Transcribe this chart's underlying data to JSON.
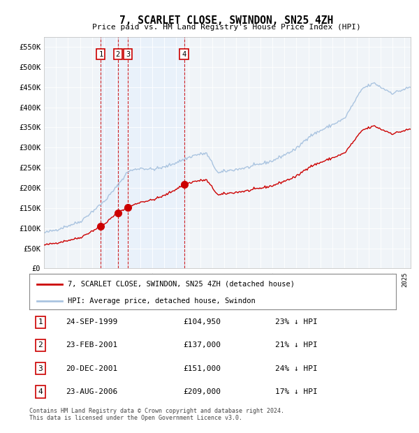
{
  "title": "7, SCARLET CLOSE, SWINDON, SN25 4ZH",
  "subtitle": "Price paid vs. HM Land Registry's House Price Index (HPI)",
  "ylabel_ticks": [
    "£0",
    "£50K",
    "£100K",
    "£150K",
    "£200K",
    "£250K",
    "£300K",
    "£350K",
    "£400K",
    "£450K",
    "£500K",
    "£550K"
  ],
  "ytick_values": [
    0,
    50000,
    100000,
    150000,
    200000,
    250000,
    300000,
    350000,
    400000,
    450000,
    500000,
    550000
  ],
  "ylim": [
    0,
    575000
  ],
  "xlim_start": 1995.0,
  "xlim_end": 2025.5,
  "hpi_color": "#aac4e0",
  "price_color": "#cc0000",
  "sale_marker_color": "#cc0000",
  "dashed_line_color": "#cc0000",
  "shade_color": "#ddeeff",
  "transactions": [
    {
      "num": 1,
      "date_label": "24-SEP-1999",
      "year_x": 1999.73,
      "price": 104950,
      "price_label": "£104,950",
      "discount": "23% ↓ HPI"
    },
    {
      "num": 2,
      "date_label": "23-FEB-2001",
      "year_x": 2001.15,
      "price": 137000,
      "price_label": "£137,000",
      "discount": "21% ↓ HPI"
    },
    {
      "num": 3,
      "date_label": "20-DEC-2001",
      "year_x": 2001.97,
      "price": 151000,
      "price_label": "£151,000",
      "discount": "24% ↓ HPI"
    },
    {
      "num": 4,
      "date_label": "23-AUG-2006",
      "year_x": 2006.65,
      "price": 209000,
      "price_label": "£209,000",
      "discount": "17% ↓ HPI"
    }
  ],
  "legend_line1": "7, SCARLET CLOSE, SWINDON, SN25 4ZH (detached house)",
  "legend_line2": "HPI: Average price, detached house, Swindon",
  "footnote": "Contains HM Land Registry data © Crown copyright and database right 2024.\nThis data is licensed under the Open Government Licence v3.0.",
  "background_color": "#ffffff",
  "plot_bg_color": "#f0f4f8"
}
